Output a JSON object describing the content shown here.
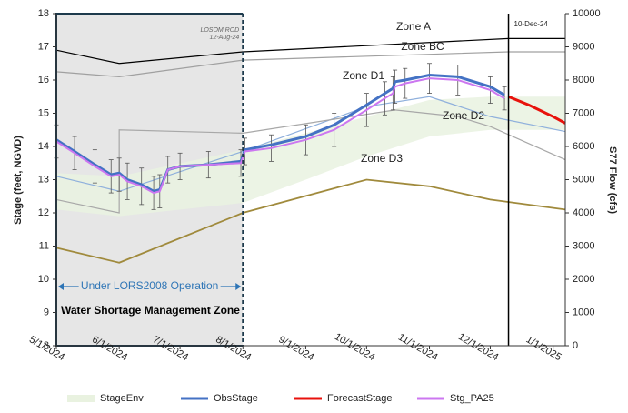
{
  "chart_data": {
    "type": "line",
    "y_label": "Stage (feet, NGVD)",
    "y2_label": "S77 Flow (cfs)",
    "ylim": [
      8,
      18
    ],
    "yticks": [
      8,
      9,
      10,
      11,
      12,
      13,
      14,
      15,
      16,
      17,
      18
    ],
    "y2lim": [
      0,
      10000
    ],
    "y2ticks": [
      0,
      1000,
      2000,
      3000,
      4000,
      5000,
      6000,
      7000,
      8000,
      9000,
      10000
    ],
    "xlim": [
      "5/1/2024",
      "1/7/2025"
    ],
    "xticks": [
      "5/1/2024",
      "6/1/2024",
      "7/1/2024",
      "8/1/2024",
      "9/1/2024",
      "10/1/2024",
      "11/1/2024",
      "12/1/2024",
      "1/1/2025"
    ],
    "series": [
      {
        "name": "StageEnv",
        "color": "#e9f2e0",
        "x": [
          "5/1/2024",
          "6/1/2024",
          "8/1/2024",
          "9/1/2024",
          "10/1/2024",
          "11/1/2024",
          "12/1/2024",
          "1/7/2025"
        ],
        "values": [
          13.2,
          13.1,
          13.9,
          14.4,
          14.9,
          15.4,
          15.5,
          15.5
        ],
        "lower": [
          12.1,
          11.9,
          12.3,
          13.0,
          13.7,
          14.3,
          14.5,
          14.5
        ]
      },
      {
        "name": "ObsStage",
        "color": "#4472c4",
        "x": [
          "5/1/2024",
          "5/10/2024",
          "5/20/2024",
          "5/28/2024",
          "6/1/2024",
          "6/5/2024",
          "6/12/2024",
          "6/18/2024",
          "6/21/2024",
          "6/25/2024",
          "7/1/2024",
          "7/15/2024",
          "7/31/2024",
          "8/2/2024",
          "8/15/2024",
          "9/1/2024",
          "9/15/2024",
          "10/1/2024",
          "10/10/2024",
          "10/14/2024",
          "10/15/2024",
          "10/20/2024",
          "11/1/2024",
          "11/15/2024",
          "12/1/2024",
          "12/8/2024"
        ],
        "values": [
          14.2,
          13.85,
          13.45,
          13.15,
          13.2,
          13.0,
          12.85,
          12.65,
          12.7,
          13.3,
          13.4,
          13.45,
          13.55,
          13.9,
          14.05,
          14.3,
          14.65,
          15.25,
          15.6,
          15.75,
          15.95,
          16.0,
          16.15,
          16.1,
          15.8,
          15.55
        ]
      },
      {
        "name": "ForecastStage",
        "color": "#e8120c",
        "x": [
          "12/10/2024",
          "12/20/2024",
          "1/1/2025",
          "1/7/2025"
        ],
        "values": [
          15.5,
          15.25,
          14.9,
          14.7
        ]
      },
      {
        "name": "Stg_PA25",
        "color": "#cc77f0",
        "x": [
          "5/1/2024",
          "5/10/2024",
          "5/20/2024",
          "5/28/2024",
          "6/1/2024",
          "6/5/2024",
          "6/12/2024",
          "6/18/2024",
          "6/21/2024",
          "6/25/2024",
          "7/1/2024",
          "7/15/2024",
          "7/31/2024",
          "8/2/2024",
          "8/15/2024",
          "9/1/2024",
          "9/15/2024",
          "10/1/2024",
          "10/10/2024",
          "10/14/2024",
          "10/15/2024",
          "10/20/2024",
          "11/1/2024",
          "11/15/2024",
          "12/1/2024",
          "12/8/2024"
        ],
        "values": [
          14.15,
          13.8,
          13.4,
          13.1,
          13.15,
          12.95,
          12.8,
          12.6,
          12.65,
          13.3,
          13.4,
          13.45,
          13.5,
          13.85,
          13.95,
          14.2,
          14.5,
          15.1,
          15.45,
          15.6,
          15.8,
          15.9,
          16.05,
          16.0,
          15.7,
          15.45
        ],
        "errors": [
          0.5,
          0.5,
          0.5,
          0.5,
          0.5,
          0.55,
          0.55,
          0.5,
          0.5,
          0.4,
          0.4,
          0.4,
          0.4,
          0.4,
          0.4,
          0.45,
          0.5,
          0.5,
          0.5,
          0.5,
          0.5,
          0.45,
          0.45,
          0.45,
          0.4,
          0.35
        ]
      }
    ],
    "reference_lines": [
      {
        "color": "#000000",
        "x": [
          "5/1/2024",
          "6/1/2024",
          "8/1/2024",
          "12/10/2024",
          "1/7/2025"
        ],
        "values": [
          16.9,
          16.5,
          16.85,
          17.25,
          17.25
        ]
      },
      {
        "color": "#a0a0a0",
        "x": [
          "5/1/2024",
          "6/1/2024",
          "8/1/2024",
          "12/10/2024",
          "1/7/2025"
        ],
        "values": [
          16.25,
          16.1,
          16.6,
          16.85,
          16.85
        ]
      },
      {
        "color": "#8fb0dc",
        "x": [
          "5/1/2024",
          "6/1/2024",
          "8/1/2024",
          "10/1/2024",
          "11/1/2024",
          "12/1/2024",
          "1/7/2025"
        ],
        "values": [
          13.1,
          12.65,
          13.85,
          15.2,
          15.5,
          14.9,
          14.45
        ]
      },
      {
        "color": "#a8a8a8",
        "x": [
          "5/1/2024",
          "6/1/2024",
          "6/1/2024",
          "8/1/2024",
          "10/15/2024",
          "11/15/2024",
          "12/1/2024",
          "1/7/2025"
        ],
        "values": [
          12.4,
          12.0,
          14.5,
          14.4,
          15.1,
          14.9,
          14.6,
          13.6
        ]
      },
      {
        "color": "#a08a3c",
        "x": [
          "5/1/2024",
          "6/1/2024",
          "8/1/2024",
          "10/1/2024",
          "11/1/2024",
          "12/1/2024",
          "1/7/2025"
        ],
        "values": [
          10.95,
          10.5,
          12.0,
          13.0,
          12.8,
          12.4,
          12.1
        ]
      }
    ],
    "zone_labels": [
      "Zone A",
      "Zone BC",
      "Zone D1",
      "Zone D2",
      "Zone D3"
    ],
    "markers": [
      {
        "x": "8/1/2024",
        "label": "LOSOM ROD",
        "sublabel": "12-Aug-24"
      },
      {
        "x": "12/10/2024",
        "label": "10-Dec-24"
      }
    ],
    "annotations": [
      "Under LORS2008 Operation",
      "Water Shortage Management Zone"
    ]
  }
}
